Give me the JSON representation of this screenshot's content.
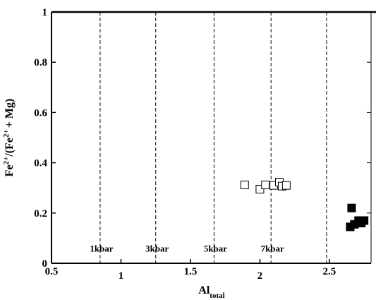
{
  "chart_data": {
    "type": "scatter",
    "xlabel": [
      "Al",
      "total"
    ],
    "ylabel": [
      "Fe",
      "2+",
      "/(Fe",
      "2+",
      "+ Mg)"
    ],
    "xlim": [
      0.5,
      2.8
    ],
    "ylim": [
      0,
      1
    ],
    "xticks": [
      0.5,
      1,
      1.5,
      2,
      2.5
    ],
    "yticks": [
      0,
      0.2,
      0.4,
      0.6,
      0.8,
      1
    ],
    "reference_lines": [
      {
        "x": 0.85,
        "label": "1kbar"
      },
      {
        "x": 1.25,
        "label": "3kbar"
      },
      {
        "x": 1.67,
        "label": "5kbar"
      },
      {
        "x": 2.08,
        "label": "7kbar"
      },
      {
        "x": 2.48
      }
    ],
    "reference_label_y": 0.06,
    "series": [
      {
        "marker": "open-square",
        "color": "#000000",
        "x": [
          1.89,
          2.0,
          2.04,
          2.1,
          2.14,
          2.16,
          2.19
        ],
        "values": [
          0.312,
          0.295,
          0.312,
          0.31,
          0.323,
          0.307,
          0.31
        ]
      },
      {
        "marker": "filled-square",
        "color": "#000000",
        "x": [
          2.66,
          2.65,
          2.68,
          2.71,
          2.73,
          2.75
        ],
        "values": [
          0.22,
          0.145,
          0.155,
          0.17,
          0.16,
          0.17
        ]
      }
    ]
  }
}
